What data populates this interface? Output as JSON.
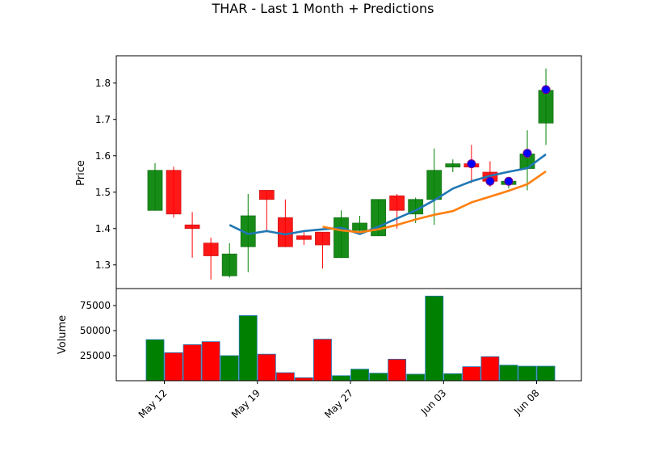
{
  "chart_data": {
    "type": "candlestick",
    "title": "THAR - Last 1 Month + Predictions",
    "price_panel": {
      "ylabel": "Price",
      "ylim": [
        1.235,
        1.875
      ],
      "yticks": [
        1.3,
        1.4,
        1.5,
        1.6,
        1.7,
        1.8
      ],
      "ytick_labels": [
        "1.3",
        "1.4",
        "1.5",
        "1.6",
        "1.7",
        "1.8"
      ],
      "candles": [
        {
          "o": 1.45,
          "h": 1.58,
          "l": 1.45,
          "c": 1.56
        },
        {
          "o": 1.56,
          "h": 1.57,
          "l": 1.43,
          "c": 1.44
        },
        {
          "o": 1.41,
          "h": 1.445,
          "l": 1.32,
          "c": 1.4
        },
        {
          "o": 1.36,
          "h": 1.375,
          "l": 1.26,
          "c": 1.325
        },
        {
          "o": 1.27,
          "h": 1.36,
          "l": 1.265,
          "c": 1.33
        },
        {
          "o": 1.35,
          "h": 1.495,
          "l": 1.28,
          "c": 1.435
        },
        {
          "o": 1.505,
          "h": 1.505,
          "l": 1.39,
          "c": 1.48
        },
        {
          "o": 1.43,
          "h": 1.48,
          "l": 1.35,
          "c": 1.35
        },
        {
          "o": 1.38,
          "h": 1.39,
          "l": 1.355,
          "c": 1.37
        },
        {
          "o": 1.39,
          "h": 1.39,
          "l": 1.29,
          "c": 1.355
        },
        {
          "o": 1.32,
          "h": 1.45,
          "l": 1.32,
          "c": 1.43
        },
        {
          "o": 1.395,
          "h": 1.435,
          "l": 1.385,
          "c": 1.415
        },
        {
          "o": 1.38,
          "h": 1.48,
          "l": 1.38,
          "c": 1.48
        },
        {
          "o": 1.49,
          "h": 1.495,
          "l": 1.4,
          "c": 1.45
        },
        {
          "o": 1.44,
          "h": 1.485,
          "l": 1.415,
          "c": 1.48
        },
        {
          "o": 1.48,
          "h": 1.62,
          "l": 1.41,
          "c": 1.56
        },
        {
          "o": 1.57,
          "h": 1.59,
          "l": 1.555,
          "c": 1.578
        },
        {
          "o": 1.578,
          "h": 1.63,
          "l": 1.525,
          "c": 1.576
        },
        {
          "o": 1.555,
          "h": 1.585,
          "l": 1.515,
          "c": 1.53
        },
        {
          "o": 1.528,
          "h": 1.54,
          "l": 1.51,
          "c": 1.53
        },
        {
          "o": 1.565,
          "h": 1.67,
          "l": 1.505,
          "c": 1.605
        },
        {
          "o": 1.69,
          "h": 1.84,
          "l": 1.63,
          "c": 1.78
        }
      ],
      "prediction_points": [
        {
          "index": 17,
          "value": 1.578
        },
        {
          "index": 18,
          "value": 1.53
        },
        {
          "index": 19,
          "value": 1.53
        },
        {
          "index": 20,
          "value": 1.607
        },
        {
          "index": 21,
          "value": 1.782
        }
      ],
      "series": [
        {
          "color": "#1f77b4",
          "start_index": 4,
          "values": [
            1.41,
            1.385,
            1.393,
            1.384,
            1.393,
            1.398,
            1.402,
            1.385,
            1.405,
            1.428,
            1.45,
            1.478,
            1.51,
            1.53,
            1.545,
            1.556,
            1.566,
            1.604
          ]
        },
        {
          "color": "#ff7f0e",
          "start_index": 9,
          "values": [
            1.405,
            1.395,
            1.39,
            1.398,
            1.41,
            1.425,
            1.438,
            1.448,
            1.472,
            1.488,
            1.504,
            1.522,
            1.557
          ]
        }
      ]
    },
    "volume_panel": {
      "ylabel": "Volume",
      "ylim": [
        0,
        92000
      ],
      "yticks": [
        25000,
        50000,
        75000
      ],
      "ytick_labels": [
        "25000",
        "50000",
        "75000"
      ],
      "values": [
        41000,
        28000,
        36000,
        39000,
        25000,
        65000,
        26500,
        8000,
        3000,
        41500,
        5000,
        11500,
        7500,
        21500,
        6500,
        84500,
        7000,
        14000,
        24000,
        15500,
        14500,
        14500
      ]
    },
    "x_axis": {
      "tick_labels": [
        "May 12",
        "May 19",
        "May 27",
        "Jun 03",
        "Jun 08"
      ],
      "tick_indices": [
        0.5,
        5.5,
        10.5,
        15.5,
        20.5
      ]
    },
    "colors": {
      "up": "#008000",
      "down": "#ff0000",
      "edge_up": "#006400",
      "edge_down": "#c80000",
      "volume_edge": "#1f77b4",
      "prediction_marker": "#0000ff",
      "prediction_edge": "#800080"
    }
  }
}
